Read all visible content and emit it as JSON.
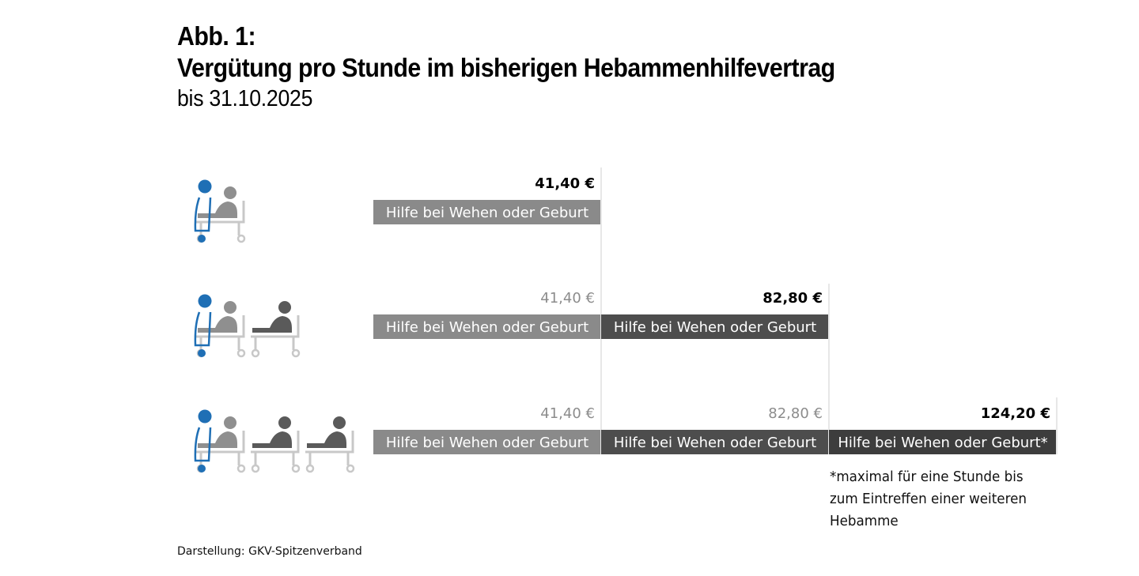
{
  "header": {
    "figure_label": "Abb. 1:",
    "title": "Vergütung pro Stunde im bisherigen Hebammenhilfevertrag",
    "subtitle": "bis 31.10.2025"
  },
  "chart_data": {
    "type": "bar",
    "orientation": "horizontal",
    "stacked": true,
    "rows": [
      {
        "patients": 1,
        "segments": [
          {
            "label": "Hilfe bei Wehen oder Geburt",
            "cumulative_label": "41,40 €",
            "value": 41.4,
            "highlight": true
          }
        ]
      },
      {
        "patients": 2,
        "segments": [
          {
            "label": "Hilfe bei Wehen oder Geburt",
            "cumulative_label": "41,40 €",
            "value": 41.4,
            "highlight": false
          },
          {
            "label": "Hilfe bei Wehen oder Geburt",
            "cumulative_label": "82,80 €",
            "value": 41.4,
            "highlight": true
          }
        ]
      },
      {
        "patients": 3,
        "segments": [
          {
            "label": "Hilfe bei Wehen oder Geburt",
            "cumulative_label": "41,40 €",
            "value": 41.4,
            "highlight": false
          },
          {
            "label": "Hilfe bei Wehen oder Geburt",
            "cumulative_label": "82,80 €",
            "value": 41.4,
            "highlight": false
          },
          {
            "label": "Hilfe bei Wehen oder Geburt*",
            "cumulative_label": "124,20 €",
            "value": 41.4,
            "highlight": true
          }
        ]
      }
    ],
    "colors": {
      "segment_1": "#8a8a8a",
      "segment_2": "#4d4d4d",
      "segment_3": "#3d3d3d",
      "label_muted": "#8c8c8c",
      "label_strong": "#000000",
      "midwife_icon": "#1f6fb5",
      "patient_icon_light": "#8f8f8f",
      "patient_icon_dark": "#5a5a5a",
      "bed_icon": "#c8c8c8"
    }
  },
  "footnote": {
    "lines": [
      "*maximal für eine Stunde bis",
      "zum Eintreffen einer weiteren",
      "Hebamme"
    ]
  },
  "source": "Darstellung: GKV-Spitzenverband"
}
